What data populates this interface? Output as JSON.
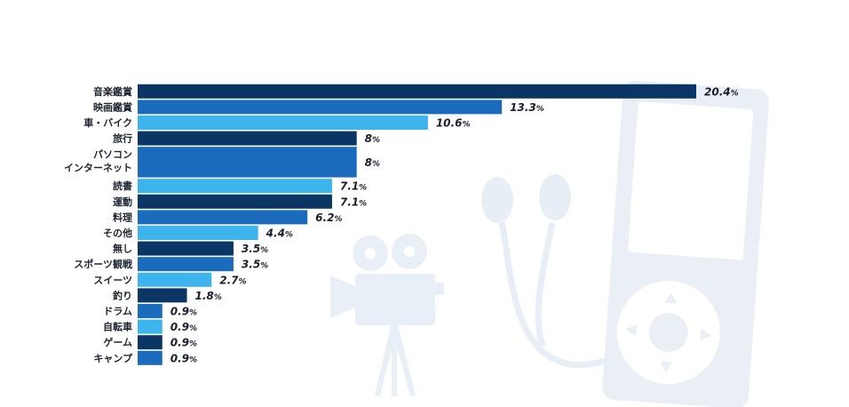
{
  "chart_data": {
    "type": "bar",
    "orientation": "horizontal",
    "categories": [
      [
        "音楽鑑賞"
      ],
      [
        "映画鑑賞"
      ],
      [
        "車・バイク"
      ],
      [
        "旅行"
      ],
      [
        "パソコン",
        "インターネット"
      ],
      [
        "読書"
      ],
      [
        "運動"
      ],
      [
        "料理"
      ],
      [
        "その他"
      ],
      [
        "無し"
      ],
      [
        "スポーツ観戦"
      ],
      [
        "スイーツ"
      ],
      [
        "釣り"
      ],
      [
        "ドラム"
      ],
      [
        "自転車"
      ],
      [
        "ゲーム"
      ],
      [
        "キャンプ"
      ]
    ],
    "values": [
      20.4,
      13.3,
      10.6,
      8,
      8,
      7.1,
      7.1,
      6.2,
      4.4,
      3.5,
      3.5,
      2.7,
      1.8,
      0.9,
      0.9,
      0.9,
      0.9
    ],
    "value_labels": [
      "20.4",
      "13.3",
      "10.6",
      "8",
      "8",
      "7.1",
      "7.1",
      "6.2",
      "4.4",
      "3.5",
      "3.5",
      "2.7",
      "1.8",
      "0.9",
      "0.9",
      "0.9",
      "0.9"
    ],
    "unit": "%",
    "xlim": [
      0,
      20.4
    ],
    "grid": false,
    "legend": "none",
    "bar_colors": [
      "#0b3564",
      "#1a6bbc",
      "#3db5ec"
    ],
    "background_icons": [
      "movie-camera-icon",
      "earphones-icon",
      "music-player-icon"
    ]
  }
}
